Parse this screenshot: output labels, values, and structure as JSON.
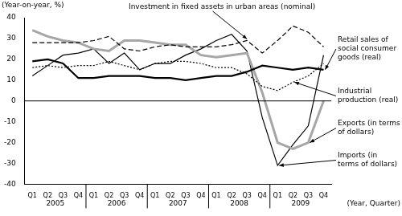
{
  "chart_data": {
    "type": "line",
    "y_label": "(Year-on-year, %)",
    "x_label": "(Year, Quarter)",
    "categories": [
      "Q1",
      "Q2",
      "Q3",
      "Q4",
      "Q1",
      "Q2",
      "Q3",
      "Q4",
      "Q1",
      "Q2",
      "Q3",
      "Q4",
      "Q1",
      "Q2",
      "Q3",
      "Q4",
      "Q1",
      "Q2",
      "Q3",
      "Q4"
    ],
    "x_groups": [
      "2005",
      "2006",
      "2007",
      "2008",
      "2009"
    ],
    "ylim": [
      -40,
      40
    ],
    "yticks": [
      -40,
      -30,
      -20,
      -10,
      0,
      10,
      20,
      30,
      40
    ],
    "grid": false,
    "series": [
      {
        "name": "Investment in fixed assets in urban areas (nominal)",
        "color": "#000000",
        "line_style": "dashed",
        "marker": "none",
        "values": [
          28,
          28,
          28,
          28,
          29,
          31,
          25,
          24,
          26,
          27,
          26,
          26,
          26,
          27,
          29,
          23,
          29,
          36,
          33,
          26
        ]
      },
      {
        "name": "Retail sales of social consumer goods (real)",
        "color": "#000000",
        "line_style": "solid",
        "marker": "none",
        "values": [
          19,
          20,
          18,
          11,
          11,
          12,
          12,
          12,
          11,
          11,
          10,
          11,
          12,
          12,
          14,
          17,
          16,
          15,
          16,
          15
        ]
      },
      {
        "name": "Industrial production (real)",
        "color": "#000000",
        "line_style": "dotted",
        "marker": "none",
        "values": [
          16,
          17,
          16,
          17,
          17,
          19,
          17,
          15,
          18,
          19,
          19,
          18,
          16,
          16,
          13,
          7,
          5,
          9,
          12,
          18
        ]
      },
      {
        "name": "Exports (in terms of dollars)",
        "color": "#a6a6a6",
        "line_style": "solid",
        "marker": "none",
        "values": [
          34,
          31,
          29,
          28,
          25,
          24,
          29,
          29,
          28,
          27,
          27,
          22,
          21,
          22,
          23,
          4,
          -20,
          -23,
          -20,
          0
        ]
      },
      {
        "name": "Imports (in terms of dollars)",
        "color": "#000000",
        "line_style": "solid",
        "marker": "none",
        "values": [
          12,
          17,
          22,
          23,
          25,
          18,
          23,
          15,
          18,
          18,
          22,
          25,
          29,
          32,
          24,
          -8,
          -31,
          -21,
          -12,
          22
        ]
      }
    ]
  }
}
